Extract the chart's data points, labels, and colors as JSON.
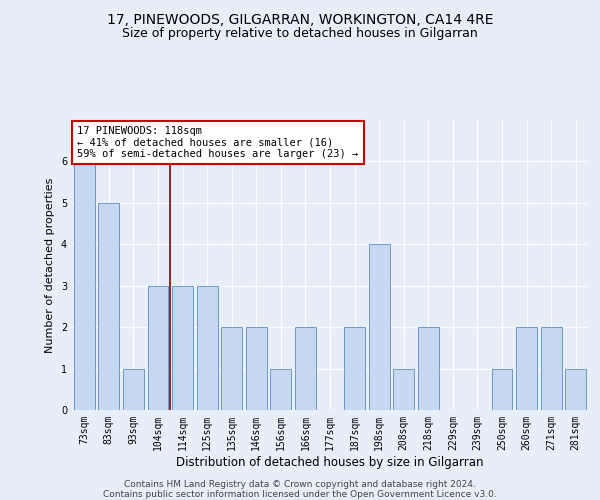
{
  "title": "17, PINEWOODS, GILGARRAN, WORKINGTON, CA14 4RE",
  "subtitle": "Size of property relative to detached houses in Gilgarran",
  "xlabel": "Distribution of detached houses by size in Gilgarran",
  "ylabel": "Number of detached properties",
  "categories": [
    "73sqm",
    "83sqm",
    "93sqm",
    "104sqm",
    "114sqm",
    "125sqm",
    "135sqm",
    "146sqm",
    "156sqm",
    "166sqm",
    "177sqm",
    "187sqm",
    "198sqm",
    "208sqm",
    "218sqm",
    "229sqm",
    "239sqm",
    "250sqm",
    "260sqm",
    "271sqm",
    "281sqm"
  ],
  "values": [
    6,
    5,
    1,
    3,
    3,
    3,
    2,
    2,
    1,
    2,
    0,
    2,
    4,
    1,
    2,
    0,
    0,
    1,
    2,
    2,
    1
  ],
  "bar_color": "#c5d8f0",
  "bar_edge_color": "#5b8fc9",
  "vline_color": "#8b0000",
  "vline_x_index": 4,
  "annotation_text": "17 PINEWOODS: 118sqm\n← 41% of detached houses are smaller (16)\n59% of semi-detached houses are larger (23) →",
  "annotation_box_color": "#ffffff",
  "annotation_box_edge": "#cc0000",
  "ylim": [
    0,
    7
  ],
  "yticks": [
    0,
    1,
    2,
    3,
    4,
    5,
    6
  ],
  "footer": "Contains HM Land Registry data © Crown copyright and database right 2024.\nContains public sector information licensed under the Open Government Licence v3.0.",
  "background_color": "#e8eef8",
  "grid_color": "#ffffff",
  "title_fontsize": 10,
  "subtitle_fontsize": 9,
  "xlabel_fontsize": 8.5,
  "ylabel_fontsize": 8,
  "tick_fontsize": 7,
  "annotation_fontsize": 7.5,
  "footer_fontsize": 6.5
}
